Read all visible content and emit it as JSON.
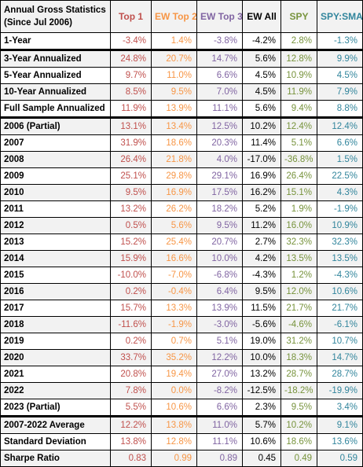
{
  "table": {
    "header_label_line1": "Annual Gross Statistics",
    "header_label_line2": "(Since Jul 2006)",
    "columns": [
      {
        "label": "Top 1",
        "color": "#c0504d"
      },
      {
        "label": "EW Top 2",
        "color": "#f79646"
      },
      {
        "label": "EW Top 3",
        "color": "#8064a2"
      },
      {
        "label": "EW All",
        "color": "#000000"
      },
      {
        "label": "SPY",
        "color": "#77933c"
      },
      {
        "label": "SPY:SMA10",
        "color": "#31859c"
      }
    ],
    "rows": [
      {
        "label": "1-Year",
        "values": [
          "-3.4%",
          "1.4%",
          "-3.8%",
          "-4.2%",
          "2.8%",
          "-1.3%"
        ]
      },
      {
        "label": "3-Year Annualized",
        "values": [
          "24.8%",
          "20.7%",
          "14.7%",
          "5.6%",
          "12.8%",
          "9.9%"
        ]
      },
      {
        "label": "5-Year Annualized",
        "values": [
          "9.7%",
          "11.0%",
          "6.6%",
          "4.5%",
          "10.9%",
          "4.5%"
        ]
      },
      {
        "label": "10-Year Annualized",
        "values": [
          "8.5%",
          "9.5%",
          "7.0%",
          "4.5%",
          "11.9%",
          "7.9%"
        ]
      },
      {
        "label": "Full Sample Annualized",
        "values": [
          "11.9%",
          "13.9%",
          "11.1%",
          "5.6%",
          "9.4%",
          "8.8%"
        ]
      },
      {
        "label": "2006 (Partial)",
        "values": [
          "13.1%",
          "13.4%",
          "12.5%",
          "10.2%",
          "12.4%",
          "12.4%"
        ]
      },
      {
        "label": "2007",
        "values": [
          "31.9%",
          "18.6%",
          "20.3%",
          "11.4%",
          "5.1%",
          "6.6%"
        ]
      },
      {
        "label": "2008",
        "values": [
          "26.4%",
          "21.8%",
          "4.0%",
          "-17.0%",
          "-36.8%",
          "1.5%"
        ]
      },
      {
        "label": "2009",
        "values": [
          "25.1%",
          "29.8%",
          "29.1%",
          "16.9%",
          "26.4%",
          "22.5%"
        ]
      },
      {
        "label": "2010",
        "values": [
          "9.5%",
          "16.9%",
          "17.5%",
          "16.2%",
          "15.1%",
          "4.3%"
        ]
      },
      {
        "label": "2011",
        "values": [
          "13.2%",
          "26.2%",
          "18.2%",
          "5.2%",
          "1.9%",
          "-1.9%"
        ]
      },
      {
        "label": "2012",
        "values": [
          "0.5%",
          "5.6%",
          "9.5%",
          "11.2%",
          "16.0%",
          "10.9%"
        ]
      },
      {
        "label": "2013",
        "values": [
          "15.2%",
          "25.4%",
          "20.7%",
          "2.7%",
          "32.3%",
          "32.3%"
        ]
      },
      {
        "label": "2014",
        "values": [
          "15.9%",
          "16.6%",
          "10.0%",
          "4.2%",
          "13.5%",
          "13.5%"
        ]
      },
      {
        "label": "2015",
        "values": [
          "-10.0%",
          "-7.0%",
          "-6.8%",
          "-4.3%",
          "1.2%",
          "-4.3%"
        ]
      },
      {
        "label": "2016",
        "values": [
          "0.2%",
          "-0.4%",
          "6.4%",
          "9.5%",
          "12.0%",
          "10.6%"
        ]
      },
      {
        "label": "2017",
        "values": [
          "15.7%",
          "13.3%",
          "13.9%",
          "11.5%",
          "21.7%",
          "21.7%"
        ]
      },
      {
        "label": "2018",
        "values": [
          "-11.6%",
          "-1.9%",
          "-3.0%",
          "-5.6%",
          "-4.6%",
          "-6.1%"
        ]
      },
      {
        "label": "2019",
        "values": [
          "0.2%",
          "0.7%",
          "5.1%",
          "19.0%",
          "31.2%",
          "10.7%"
        ]
      },
      {
        "label": "2020",
        "values": [
          "33.7%",
          "35.2%",
          "12.2%",
          "10.0%",
          "18.3%",
          "14.7%"
        ]
      },
      {
        "label": "2021",
        "values": [
          "20.8%",
          "19.4%",
          "27.0%",
          "13.2%",
          "28.7%",
          "28.7%"
        ]
      },
      {
        "label": "2022",
        "values": [
          "7.8%",
          "0.0%",
          "-8.2%",
          "-12.5%",
          "-18.2%",
          "-19.9%"
        ]
      },
      {
        "label": "2023 (Partial)",
        "values": [
          "5.5%",
          "10.6%",
          "6.6%",
          "2.3%",
          "9.5%",
          "3.4%"
        ]
      },
      {
        "label": "2007-2022 Average",
        "values": [
          "12.2%",
          "13.8%",
          "11.0%",
          "5.7%",
          "10.2%",
          "9.1%"
        ]
      },
      {
        "label": "Standard Deviation",
        "values": [
          "13.8%",
          "12.8%",
          "11.1%",
          "10.6%",
          "18.6%",
          "13.6%"
        ]
      },
      {
        "label": "Sharpe Ratio",
        "values": [
          "0.83",
          "0.99",
          "0.89",
          "0.45",
          "0.49",
          "0.59"
        ]
      }
    ]
  }
}
